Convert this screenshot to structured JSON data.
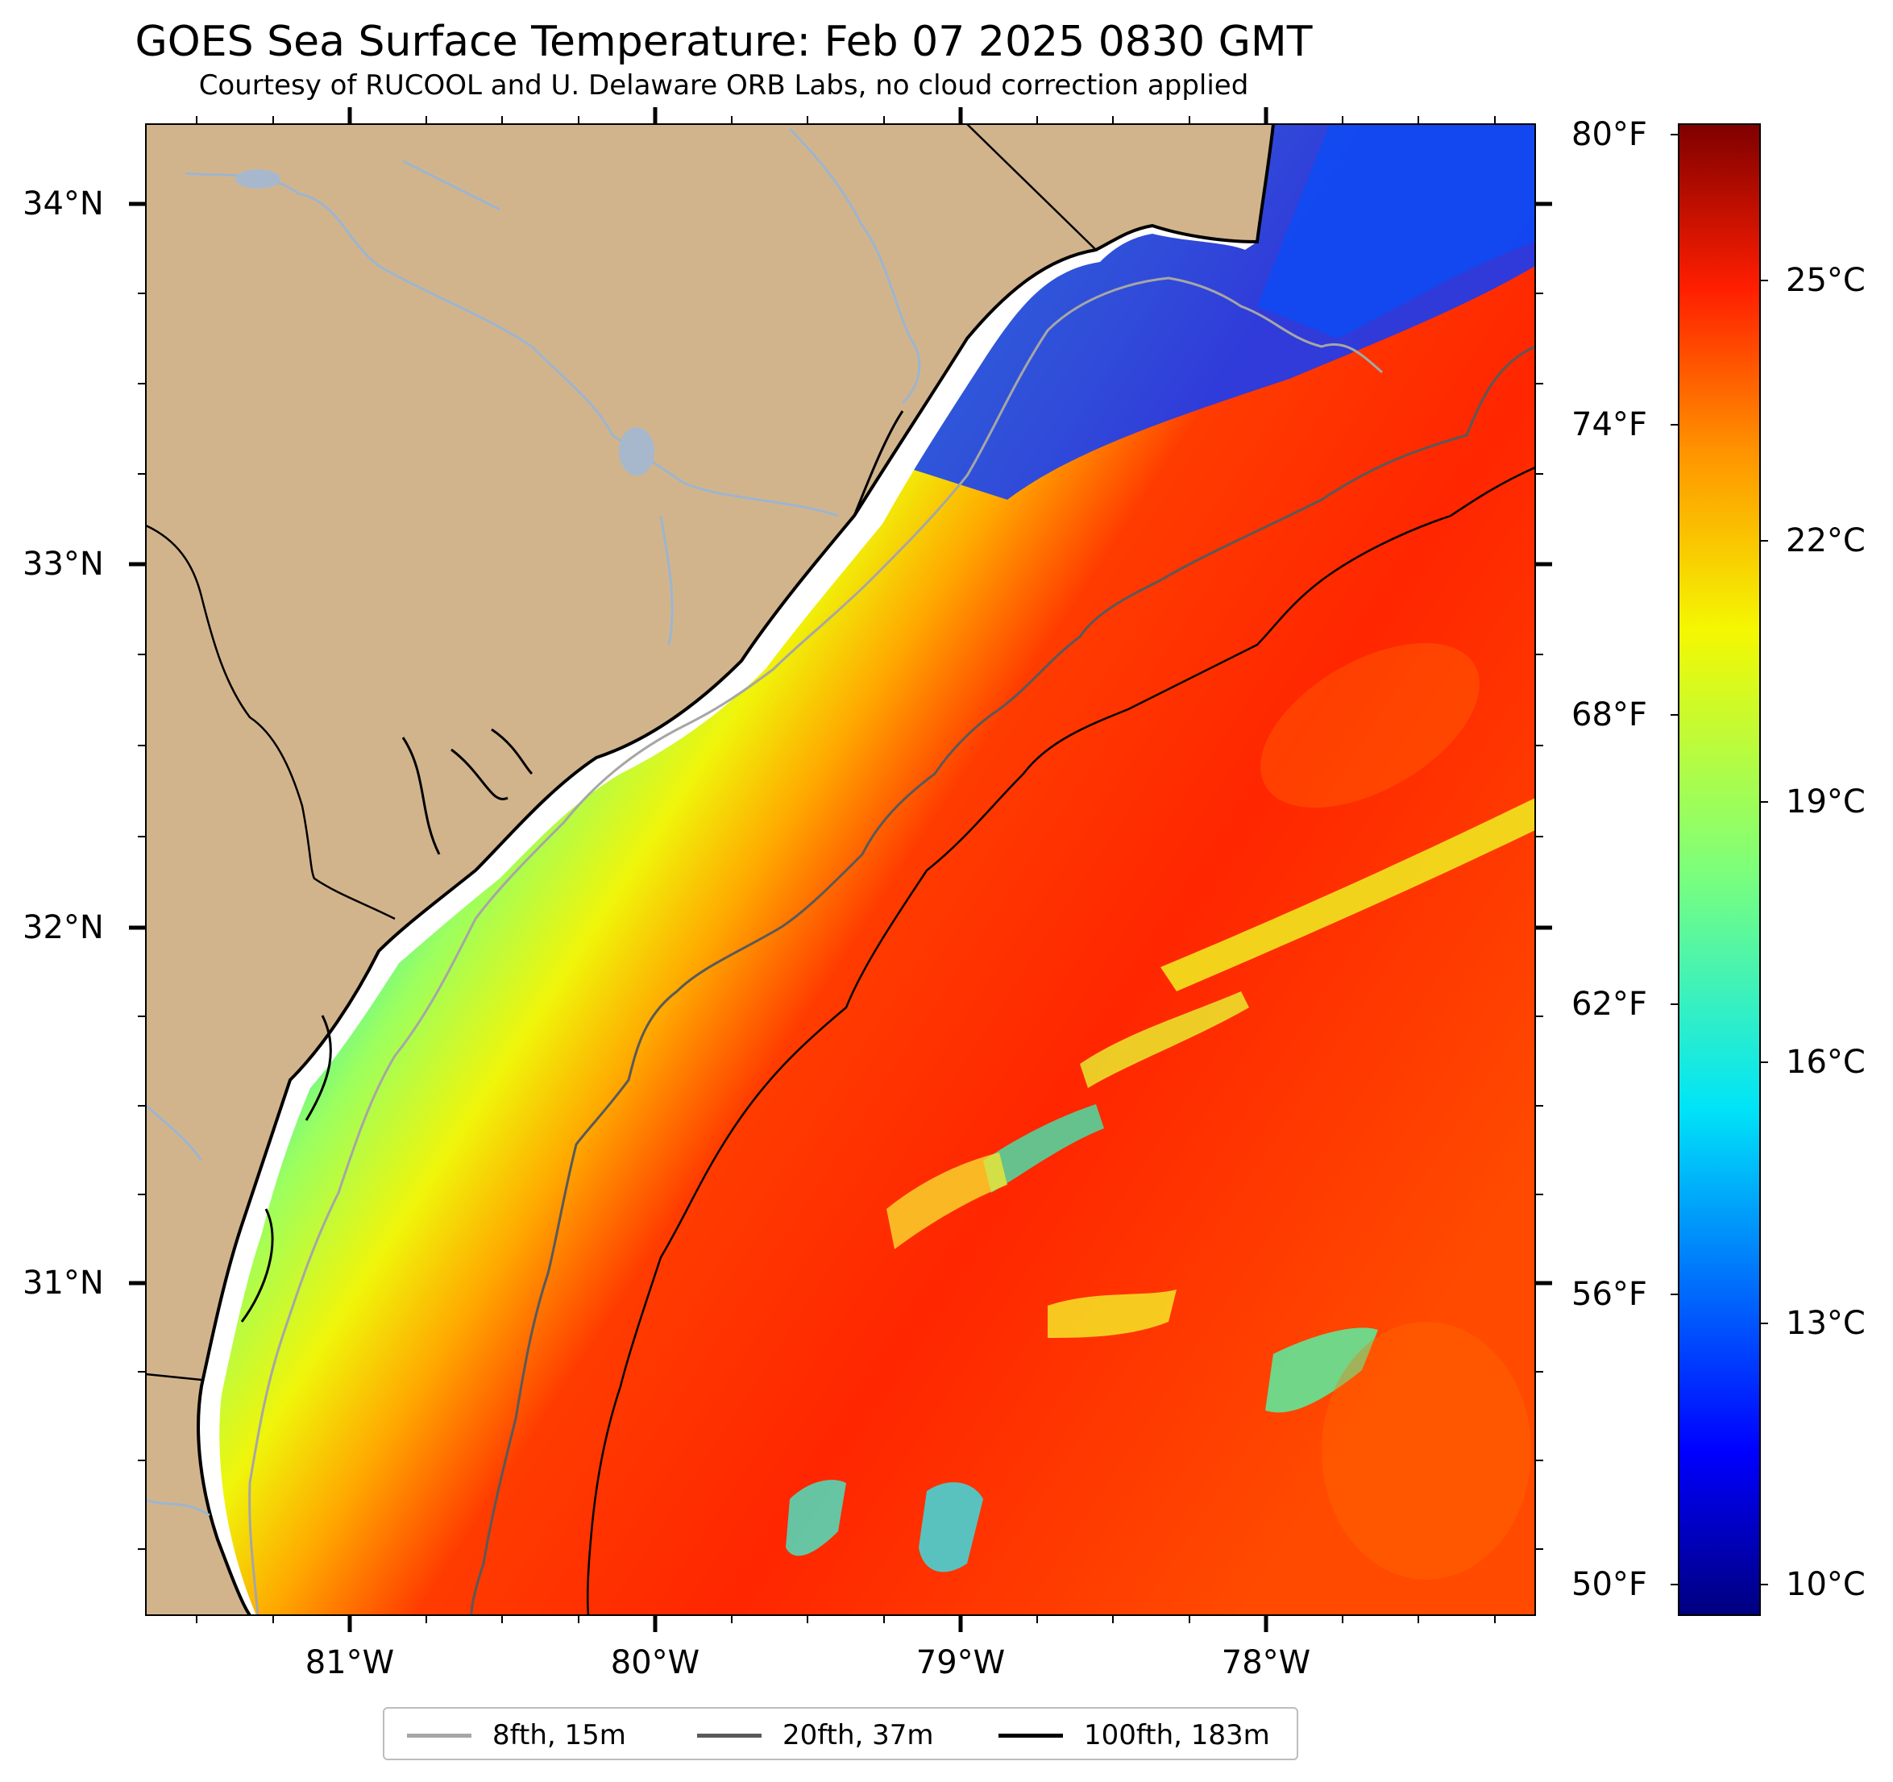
{
  "title": "GOES Sea Surface Temperature: Feb 07 2025 0830 GMT",
  "subtitle": "Courtesy of RUCOOL and U. Delaware ORB Labs, no cloud correction applied",
  "map": {
    "lat_ticks": [
      "34°N",
      "33°N",
      "32°N",
      "31°N"
    ],
    "lon_ticks": [
      "81°W",
      "80°W",
      "79°W",
      "78°W"
    ],
    "colors": {
      "land": "#d2b48c",
      "coastline": "#000000",
      "rivers": "#9db5cf",
      "contour_8fth": "#a6a6a6",
      "contour_20fth": "#595959",
      "contour_100fth": "#000000"
    }
  },
  "colorbar": {
    "fahrenheit_labels": [
      "80°F",
      "74°F",
      "68°F",
      "62°F",
      "56°F",
      "50°F"
    ],
    "celsius_labels": [
      "25°C",
      "22°C",
      "19°C",
      "16°C",
      "13°C",
      "10°C"
    ],
    "colormap": "jet",
    "range_celsius": [
      9.5,
      26.8
    ]
  },
  "legend": {
    "items": [
      {
        "label": "8fth, 15m",
        "color": "#a6a6a6"
      },
      {
        "label": "20fth, 37m",
        "color": "#595959"
      },
      {
        "label": "100fth, 183m",
        "color": "#000000"
      }
    ]
  }
}
